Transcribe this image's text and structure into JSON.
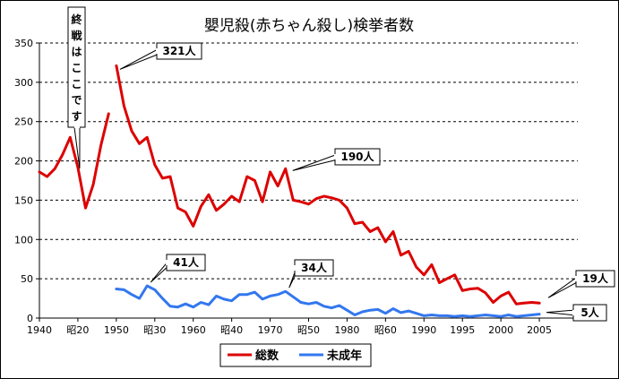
{
  "chart_data": {
    "type": "line",
    "title": "嬰児殺(赤ちゃん殺し)検挙者数",
    "ylim": [
      0,
      350
    ],
    "yticks": [
      0,
      50,
      100,
      150,
      200,
      250,
      300,
      350
    ],
    "xlim": [
      1940,
      2010
    ],
    "xticks": [
      {
        "x": 1940,
        "label": "1940"
      },
      {
        "x": 1945,
        "label": "昭20"
      },
      {
        "x": 1950,
        "label": "1950"
      },
      {
        "x": 1955,
        "label": "昭30"
      },
      {
        "x": 1960,
        "label": "1960"
      },
      {
        "x": 1965,
        "label": "昭40"
      },
      {
        "x": 1970,
        "label": "1970"
      },
      {
        "x": 1975,
        "label": "昭50"
      },
      {
        "x": 1980,
        "label": "1980"
      },
      {
        "x": 1985,
        "label": "昭60"
      },
      {
        "x": 1990,
        "label": "1990"
      },
      {
        "x": 1995,
        "label": "1995"
      },
      {
        "x": 2000,
        "label": "2000"
      },
      {
        "x": 2005,
        "label": "2005"
      }
    ],
    "grid": "horizontal dashed",
    "series": [
      {
        "name": "総数",
        "color": "#dd0000",
        "segments": [
          [
            [
              1940,
              186
            ],
            [
              1941,
              180
            ],
            [
              1942,
              190
            ],
            [
              1943,
              208
            ],
            [
              1944,
              230
            ],
            [
              1945,
              192
            ],
            [
              1946,
              140
            ],
            [
              1947,
              170
            ],
            [
              1948,
              220
            ],
            [
              1949,
              260
            ]
          ],
          [
            [
              1950,
              321
            ],
            [
              1951,
              270
            ],
            [
              1952,
              238
            ],
            [
              1953,
              222
            ],
            [
              1954,
              230
            ],
            [
              1955,
              195
            ],
            [
              1956,
              178
            ],
            [
              1957,
              180
            ],
            [
              1958,
              140
            ],
            [
              1959,
              135
            ],
            [
              1960,
              117
            ],
            [
              1961,
              142
            ],
            [
              1962,
              157
            ],
            [
              1963,
              137
            ],
            [
              1964,
              145
            ],
            [
              1965,
              155
            ],
            [
              1966,
              148
            ],
            [
              1967,
              180
            ],
            [
              1968,
              175
            ],
            [
              1969,
              148
            ],
            [
              1970,
              186
            ],
            [
              1971,
              168
            ],
            [
              1972,
              190
            ],
            [
              1973,
              150
            ],
            [
              1974,
              148
            ],
            [
              1975,
              145
            ],
            [
              1976,
              152
            ],
            [
              1977,
              155
            ],
            [
              1978,
              153
            ],
            [
              1979,
              150
            ],
            [
              1980,
              140
            ],
            [
              1981,
              120
            ],
            [
              1982,
              122
            ],
            [
              1983,
              110
            ],
            [
              1984,
              115
            ],
            [
              1985,
              97
            ],
            [
              1986,
              110
            ],
            [
              1987,
              80
            ],
            [
              1988,
              85
            ],
            [
              1989,
              65
            ],
            [
              1990,
              55
            ],
            [
              1991,
              68
            ],
            [
              1992,
              45
            ],
            [
              1993,
              50
            ],
            [
              1994,
              55
            ],
            [
              1995,
              35
            ],
            [
              1996,
              37
            ],
            [
              1997,
              38
            ],
            [
              1998,
              32
            ],
            [
              1999,
              20
            ],
            [
              2000,
              28
            ],
            [
              2001,
              33
            ],
            [
              2002,
              18
            ],
            [
              2003,
              19
            ],
            [
              2004,
              20
            ],
            [
              2005,
              19
            ]
          ]
        ]
      },
      {
        "name": "未成年",
        "color": "#3377ee",
        "segments": [
          [
            [
              1950,
              37
            ],
            [
              1951,
              36
            ],
            [
              1952,
              30
            ],
            [
              1953,
              25
            ],
            [
              1954,
              41
            ],
            [
              1955,
              36
            ],
            [
              1956,
              25
            ],
            [
              1957,
              15
            ],
            [
              1958,
              14
            ],
            [
              1959,
              18
            ],
            [
              1960,
              14
            ],
            [
              1961,
              20
            ],
            [
              1962,
              17
            ],
            [
              1963,
              28
            ],
            [
              1964,
              24
            ],
            [
              1965,
              22
            ],
            [
              1966,
              30
            ],
            [
              1967,
              30
            ],
            [
              1968,
              33
            ],
            [
              1969,
              24
            ],
            [
              1970,
              28
            ],
            [
              1971,
              30
            ],
            [
              1972,
              34
            ],
            [
              1973,
              27
            ],
            [
              1974,
              20
            ],
            [
              1975,
              18
            ],
            [
              1976,
              20
            ],
            [
              1977,
              15
            ],
            [
              1978,
              13
            ],
            [
              1979,
              16
            ],
            [
              1980,
              10
            ],
            [
              1981,
              4
            ],
            [
              1982,
              8
            ],
            [
              1983,
              10
            ],
            [
              1984,
              11
            ],
            [
              1985,
              6
            ],
            [
              1986,
              12
            ],
            [
              1987,
              7
            ],
            [
              1988,
              9
            ],
            [
              1989,
              6
            ],
            [
              1990,
              3
            ],
            [
              1991,
              4
            ],
            [
              1992,
              3
            ],
            [
              1993,
              3
            ],
            [
              1994,
              2
            ],
            [
              1995,
              3
            ],
            [
              1996,
              2
            ],
            [
              1997,
              3
            ],
            [
              1998,
              4
            ],
            [
              1999,
              3
            ],
            [
              2000,
              2
            ],
            [
              2001,
              4
            ],
            [
              2002,
              2
            ],
            [
              2003,
              3
            ],
            [
              2004,
              4
            ],
            [
              2005,
              5
            ]
          ]
        ]
      }
    ],
    "annotations": [
      {
        "text": "終戦はここです",
        "year": 1945
      },
      {
        "text": "321人",
        "year": 1950,
        "value": 321
      },
      {
        "text": "190人",
        "year": 1972,
        "value": 190
      },
      {
        "text": "41人",
        "year": 1954,
        "value": 41
      },
      {
        "text": "34人",
        "year": 1972,
        "value": 34
      },
      {
        "text": "19人",
        "year": 2005,
        "value": 19
      },
      {
        "text": "5人",
        "year": 2005,
        "value": 5
      }
    ],
    "legend": {
      "position": "bottom-center",
      "entries": [
        "総数",
        "未成年"
      ]
    }
  }
}
